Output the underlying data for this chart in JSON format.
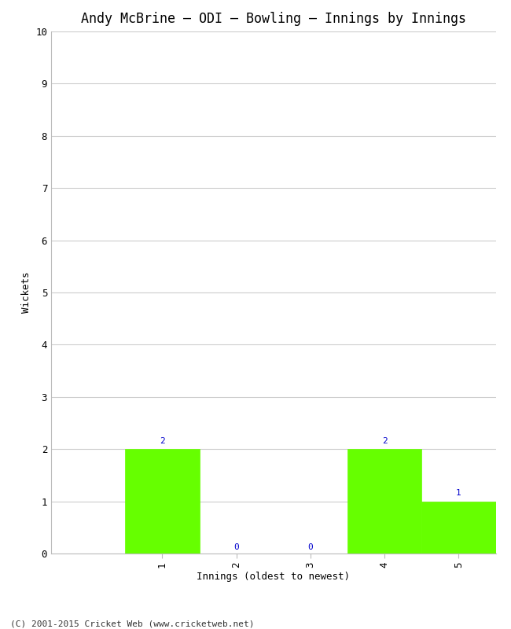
{
  "title": "Andy McBrine – ODI – Bowling – Innings by Innings",
  "xlabel": "Innings (oldest to newest)",
  "ylabel": "Wickets",
  "categories": [
    "1",
    "2",
    "3",
    "4",
    "5"
  ],
  "values": [
    2,
    0,
    0,
    2,
    1
  ],
  "bar_color": "#66ff00",
  "bar_edge_color": "#66ff00",
  "ylim": [
    0,
    10
  ],
  "yticks": [
    0,
    1,
    2,
    3,
    4,
    5,
    6,
    7,
    8,
    9,
    10
  ],
  "label_color": "#0000cc",
  "background_color": "#ffffff",
  "grid_color": "#cccccc",
  "footer": "(C) 2001-2015 Cricket Web (www.cricketweb.net)",
  "title_fontsize": 12,
  "axis_label_fontsize": 9,
  "tick_fontsize": 9,
  "footer_fontsize": 8,
  "bar_label_fontsize": 8,
  "bar_width": 1.0,
  "xlim_left": -0.5,
  "xlim_right": 5.5
}
